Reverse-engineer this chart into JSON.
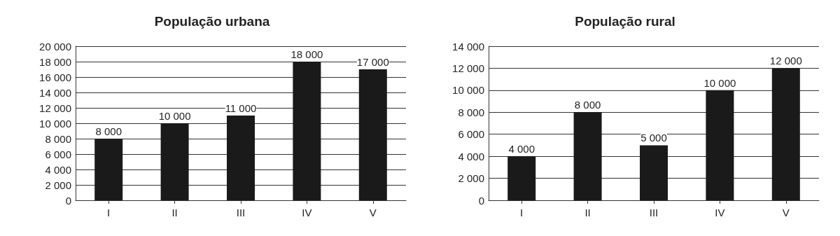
{
  "chart_data": [
    {
      "type": "bar",
      "title": "População urbana",
      "categories": [
        "I",
        "II",
        "III",
        "IV",
        "V"
      ],
      "values": [
        8000,
        10000,
        11000,
        18000,
        17000
      ],
      "color": "#1a1a1a",
      "ylim": [
        0,
        20000
      ],
      "yticks": [
        0,
        2000,
        4000,
        6000,
        8000,
        10000,
        12000,
        14000,
        16000,
        18000,
        20000
      ],
      "grid": "y",
      "data_labels": true
    },
    {
      "type": "bar",
      "title": "População rural",
      "categories": [
        "I",
        "II",
        "III",
        "IV",
        "V"
      ],
      "values": [
        4000,
        8000,
        5000,
        10000,
        12000
      ],
      "color": "#1a1a1a",
      "ylim": [
        0,
        14000
      ],
      "yticks": [
        0,
        2000,
        4000,
        6000,
        8000,
        10000,
        12000,
        14000
      ],
      "grid": "y",
      "data_labels": true
    }
  ]
}
